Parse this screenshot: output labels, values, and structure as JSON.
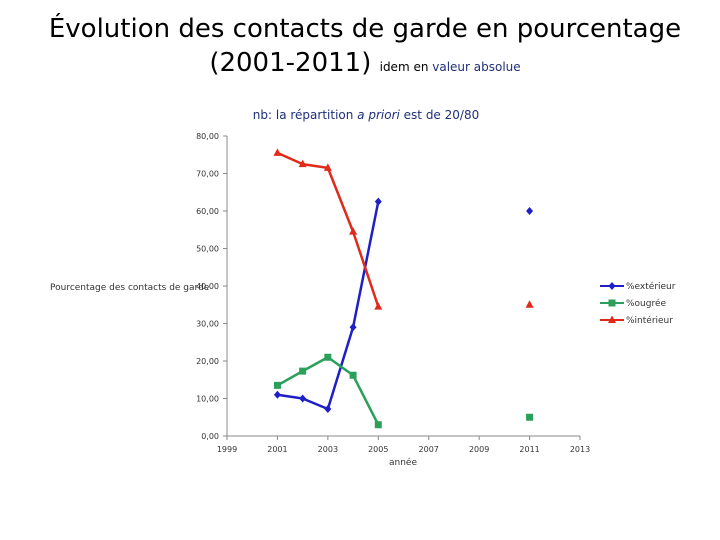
{
  "slide": {
    "title_line1": "Évolution des contacts de garde en  pourcentage",
    "title_line2": "(2001-2011)",
    "title_small_prefix": "idem  en ",
    "title_small_link": "valeur absolue"
  },
  "chart_data": {
    "type": "line",
    "title": "nb: la répartition a priori est de 20/80",
    "title_prefix": "nb: la répartition ",
    "title_italic": "a priori",
    "title_suffix": " est de 20/80",
    "xlabel": "année",
    "ylabel": "Pourcentage des contacts de garde",
    "xlim": [
      1999,
      2013
    ],
    "ylim": [
      0,
      80
    ],
    "xticks": [
      "1999",
      "2001",
      "2003",
      "2005",
      "2007",
      "2009",
      "2011",
      "2013"
    ],
    "yticks": [
      "0,00",
      "10,00",
      "20,00",
      "30,00",
      "40,00",
      "50,00",
      "60,00",
      "70,00",
      "80,00"
    ],
    "legend_position": "right",
    "series": [
      {
        "name": "%extérieur",
        "color": "#1f1fc8",
        "marker": "diamond",
        "points": [
          [
            2001,
            11
          ],
          [
            2002,
            10
          ],
          [
            2003,
            7.2
          ],
          [
            2004,
            29
          ],
          [
            2005,
            62.5
          ]
        ],
        "isolated": [
          [
            2011,
            60
          ]
        ]
      },
      {
        "name": "%ougrée",
        "color": "#2aa05a",
        "marker": "square",
        "points": [
          [
            2001,
            13.5
          ],
          [
            2002,
            17.3
          ],
          [
            2003,
            21
          ],
          [
            2004,
            16.2
          ],
          [
            2005,
            3
          ]
        ],
        "isolated": [
          [
            2011,
            5
          ]
        ]
      },
      {
        "name": "%intérieur",
        "color": "#e02a1a",
        "marker": "triangle",
        "points": [
          [
            2001,
            75.5
          ],
          [
            2002,
            72.5
          ],
          [
            2003,
            71.5
          ],
          [
            2004,
            54.5
          ],
          [
            2005,
            34.5
          ]
        ],
        "isolated": [
          [
            2011,
            35
          ]
        ]
      }
    ]
  }
}
